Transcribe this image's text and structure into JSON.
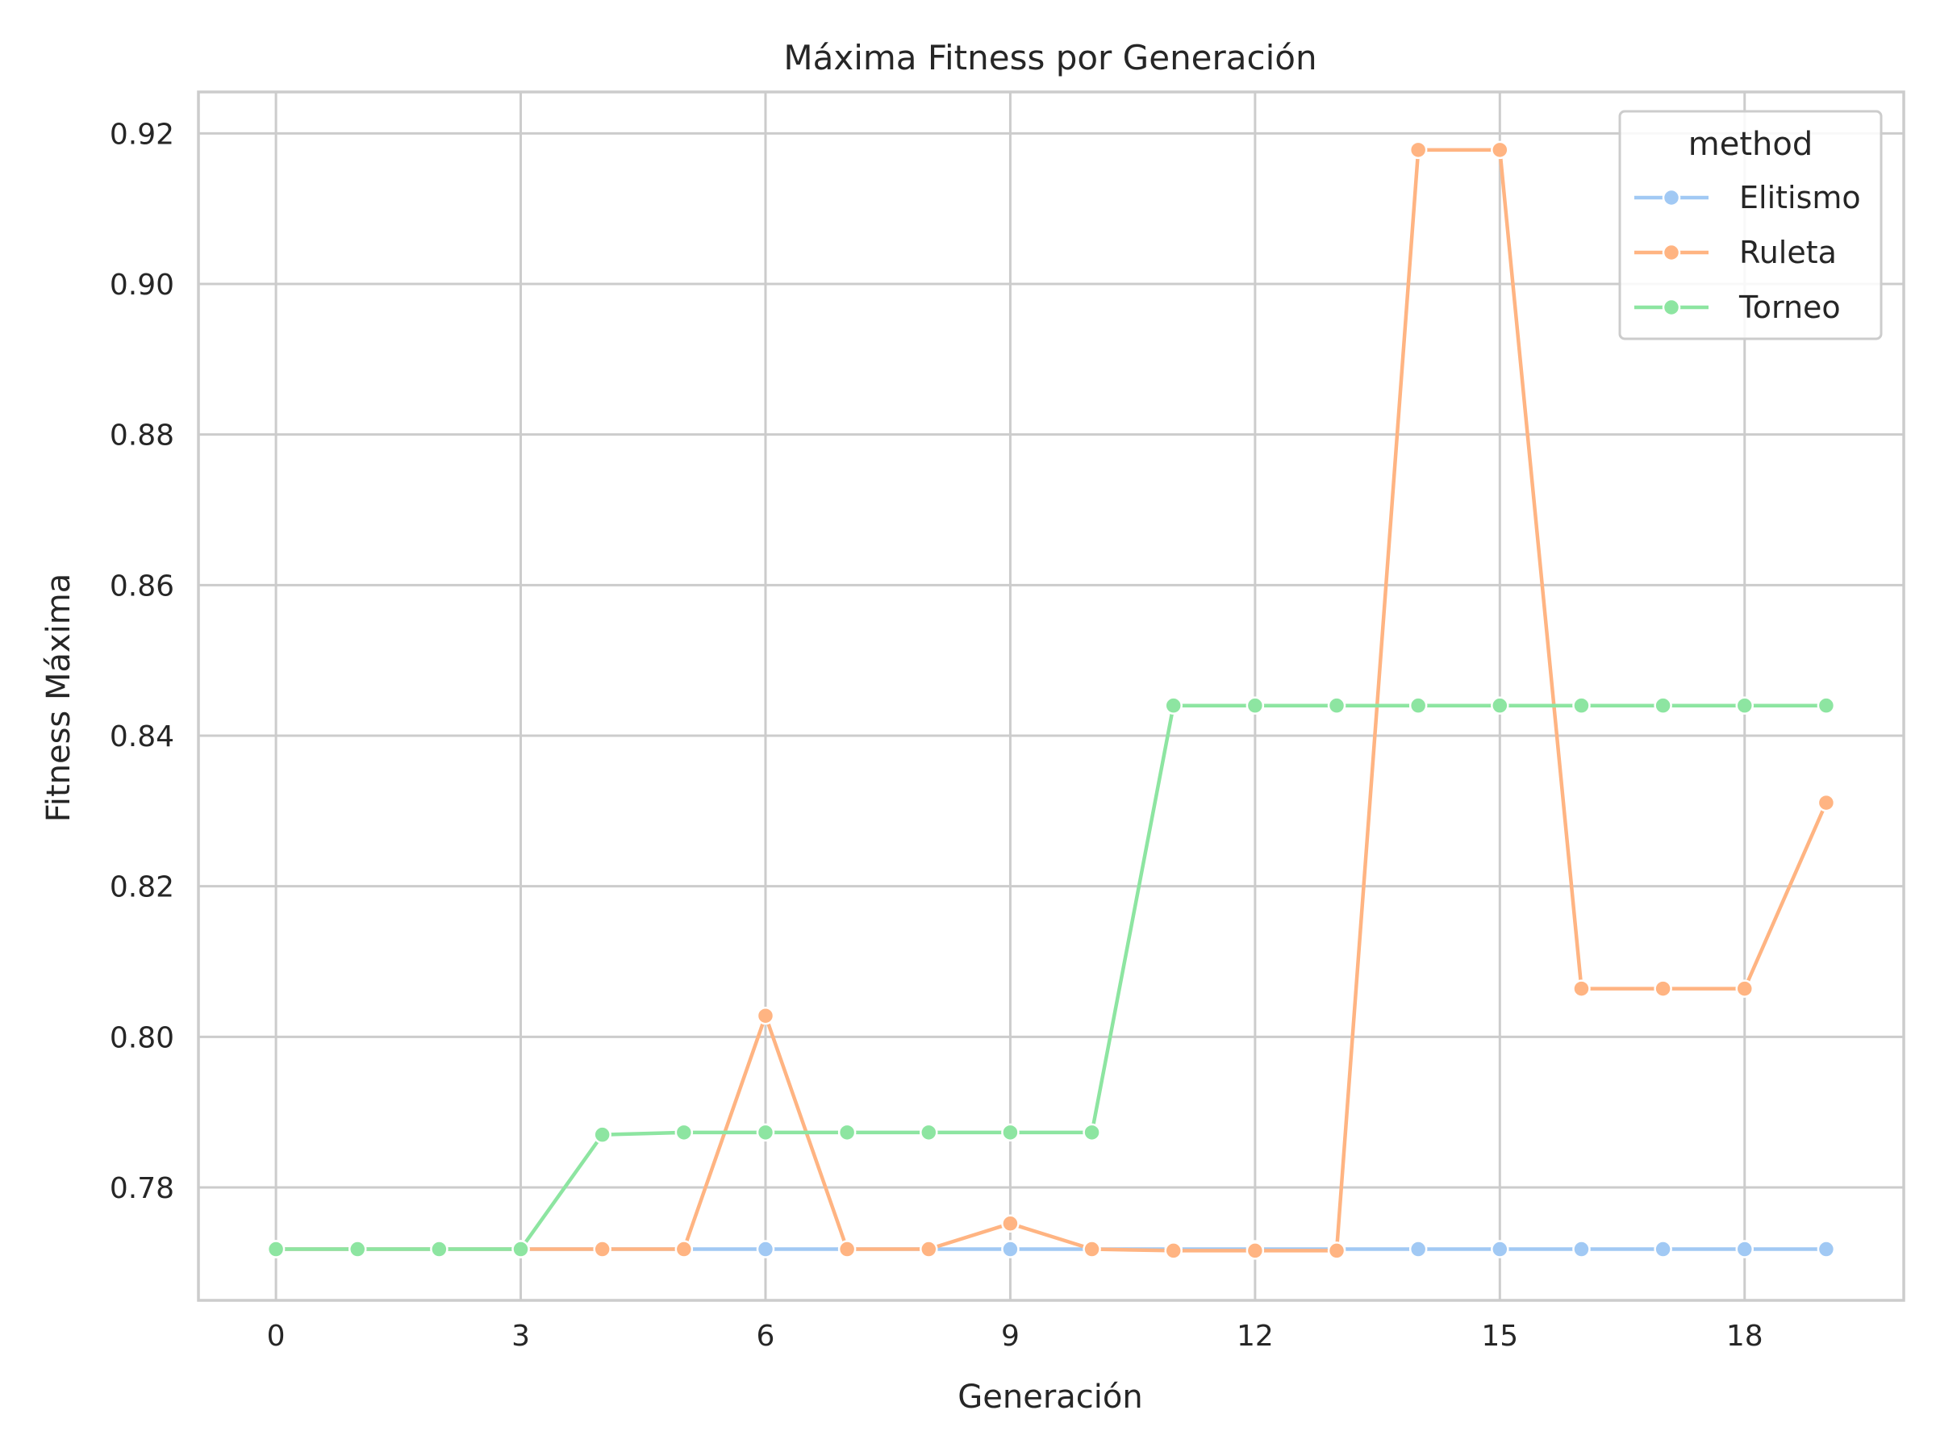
{
  "chart_data": {
    "type": "line",
    "title": "Máxima Fitness por Generación",
    "xlabel": "Generación",
    "ylabel": "Fitness Máxima",
    "xlim": [
      -0.95,
      19.95
    ],
    "ylim": [
      0.765,
      0.9255
    ],
    "xticks": [
      0,
      3,
      6,
      9,
      12,
      15,
      18
    ],
    "yticks": [
      0.78,
      0.8,
      0.82,
      0.84,
      0.86,
      0.88,
      0.9,
      0.92
    ],
    "ytick_labels": [
      "0.78",
      "0.80",
      "0.82",
      "0.84",
      "0.86",
      "0.88",
      "0.90",
      "0.92"
    ],
    "grid": true,
    "legend": {
      "title": "method",
      "position": "top-right"
    },
    "x": [
      0,
      1,
      2,
      3,
      4,
      5,
      6,
      7,
      8,
      9,
      10,
      11,
      12,
      13,
      14,
      15,
      16,
      17,
      18,
      19
    ],
    "series": [
      {
        "name": "Elitismo",
        "color": "#a1c9f4",
        "values": [
          0.7718,
          0.7718,
          0.7718,
          0.7718,
          0.7718,
          0.7718,
          0.7718,
          0.7718,
          0.7718,
          0.7718,
          0.7718,
          0.7718,
          0.7718,
          0.7718,
          0.7718,
          0.7718,
          0.7718,
          0.7718,
          0.7718,
          0.7718
        ]
      },
      {
        "name": "Ruleta",
        "color": "#ffb482",
        "values": [
          0.7718,
          0.7718,
          0.7718,
          0.7718,
          0.7718,
          0.7718,
          0.8028,
          0.7718,
          0.7718,
          0.7752,
          0.7718,
          0.7716,
          0.7716,
          0.7716,
          0.9178,
          0.9178,
          0.8064,
          0.8064,
          0.8064,
          0.8311
        ]
      },
      {
        "name": "Torneo",
        "color": "#8de5a1",
        "values": [
          0.7718,
          0.7718,
          0.7718,
          0.7718,
          0.787,
          0.7873,
          0.7873,
          0.7873,
          0.7873,
          0.7873,
          0.7873,
          0.844,
          0.844,
          0.844,
          0.844,
          0.844,
          0.844,
          0.844,
          0.844,
          0.844
        ]
      }
    ]
  }
}
